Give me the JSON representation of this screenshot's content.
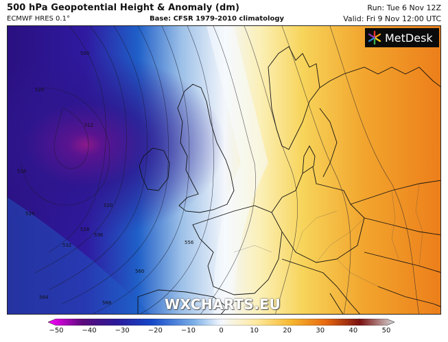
{
  "header": {
    "title": "500 hPa Geopotential Height & Anomaly (dm)",
    "model": "ECMWF HRES 0.1°",
    "base": "Base: CFSR 1979-2010 climatology",
    "run": "Run: Tue 6 Nov 12Z",
    "valid": "Valid: Fri 9 Nov 12:00 UTC"
  },
  "logo": {
    "text": "MetDesk",
    "icon": "metdesk-star-icon"
  },
  "watermark": "WXCHARTS.EU",
  "contours": {
    "labels": [
      "500",
      "520",
      "512",
      "516",
      "520",
      "524",
      "528",
      "532",
      "536",
      "556",
      "560",
      "564",
      "568"
    ]
  },
  "colorbar": {
    "ticks": [
      "−50",
      "−40",
      "−30",
      "−20",
      "−10",
      "0",
      "10",
      "20",
      "30",
      "40",
      "50"
    ],
    "colors": [
      "#ff00ff",
      "#5a0a7a",
      "#2a1a9a",
      "#1448c8",
      "#7aaee6",
      "#f4f8ff",
      "#ffeaa0",
      "#f6b830",
      "#e86a10",
      "#7a1010",
      "#d8d8d8"
    ]
  },
  "legend_colors": {
    "low_center": "#8a1a8a",
    "deep_blue": "#2f1a9e",
    "ocean_blue": "#1f5fc8",
    "pale": "#f3f6fb",
    "yellow": "#f7d45a",
    "orange": "#ef8a20"
  }
}
